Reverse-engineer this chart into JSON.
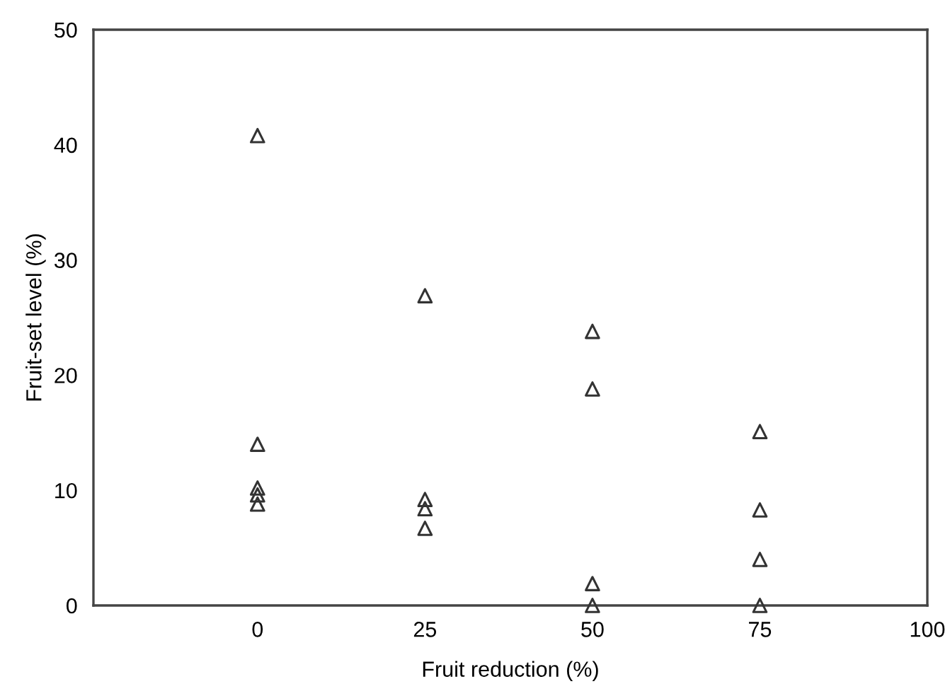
{
  "chart_data": {
    "type": "scatter",
    "xlabel": "Fruit reduction (%)",
    "ylabel": "Fruit-set level (%)",
    "x": [
      0,
      0,
      0,
      0,
      0,
      25,
      25,
      25,
      25,
      50,
      50,
      50,
      50,
      75,
      75,
      75,
      75
    ],
    "values": [
      40.8,
      14.0,
      10.2,
      9.6,
      8.8,
      26.9,
      9.2,
      8.4,
      6.7,
      23.8,
      18.8,
      1.9,
      0,
      15.1,
      8.3,
      4.0,
      0
    ],
    "color": "#333333",
    "marker": "triangle",
    "xlim": [
      -24.5,
      100
    ],
    "xticks": [
      0,
      25,
      50,
      75,
      100
    ],
    "ylim": [
      0,
      50
    ],
    "yticks": [
      0,
      10,
      20,
      30,
      40,
      50
    ],
    "grid": false,
    "legend": false
  }
}
